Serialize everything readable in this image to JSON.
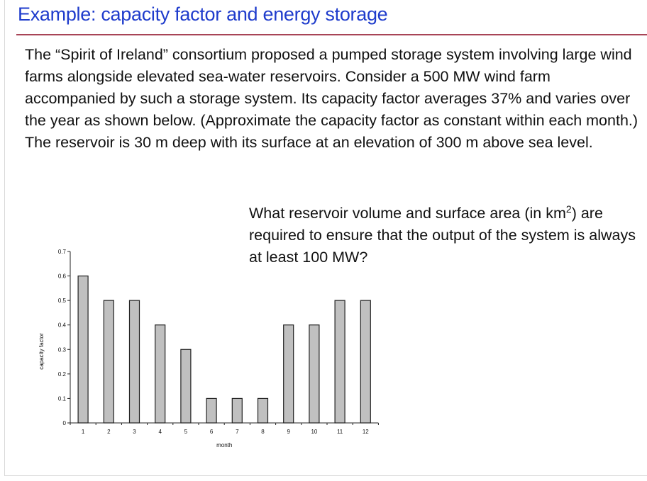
{
  "slide": {
    "title": "Example: capacity factor and energy storage",
    "body": "The “Spirit of Ireland” consortium proposed a pumped storage system involving large wind farms alongside elevated sea-water reservoirs. Consider a 500 MW wind farm accompanied by such a storage system. Its capacity factor averages 37% and varies over the year as shown below. (Approximate the capacity factor as constant within each month.) The reservoir is 30 m deep with its surface at an elevation of 300 m above sea level.",
    "question_before_sup": "What reservoir volume and surface area (in km",
    "question_sup": "2",
    "question_after_sup": ") are required to ensure that the output of the system is always at least 100 MW?"
  },
  "colors": {
    "title": "#1f3ccc",
    "rule": "#a84557",
    "bar_fill": "#c0c0c0",
    "bar_stroke": "#222222"
  },
  "chart_data": {
    "type": "bar",
    "title": "",
    "xlabel": "month",
    "ylabel": "capacity factor",
    "categories": [
      "1",
      "2",
      "3",
      "4",
      "5",
      "6",
      "7",
      "8",
      "9",
      "10",
      "11",
      "12"
    ],
    "values": [
      0.6,
      0.5,
      0.5,
      0.4,
      0.3,
      0.1,
      0.1,
      0.1,
      0.4,
      0.4,
      0.5,
      0.5
    ],
    "ylim": [
      0,
      0.7
    ],
    "yticks": [
      "0",
      "0.1",
      "0.2",
      "0.3",
      "0.4",
      "0.5",
      "0.6",
      "0.7"
    ],
    "grid": false,
    "legend": "none"
  }
}
